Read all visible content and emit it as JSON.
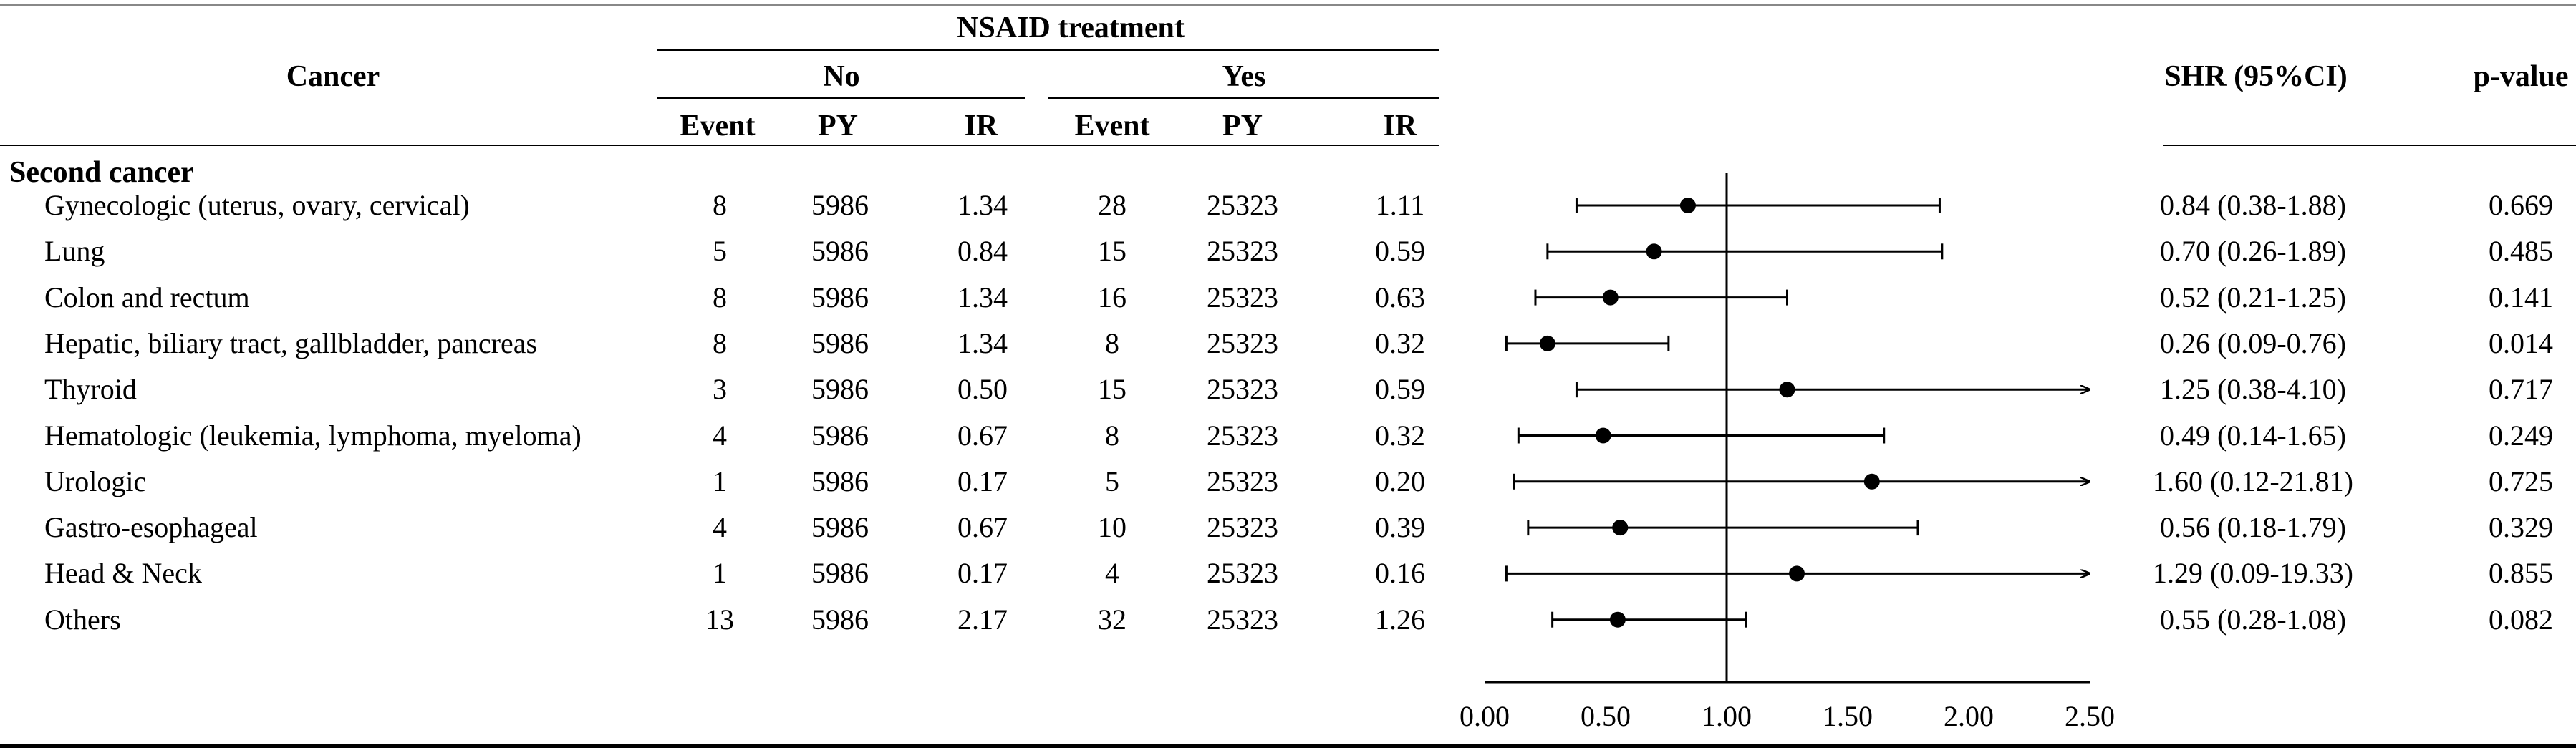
{
  "header": {
    "group_title": "NSAID treatment",
    "col_cancer": "Cancer",
    "group_no": "No",
    "group_yes": "Yes",
    "col_event": "Event",
    "col_py": "PY",
    "col_ir": "IR",
    "col_shr": "SHR (95%CI)",
    "col_p": "p-value"
  },
  "section_label": "Second cancer",
  "rows": [
    {
      "name": "Gynecologic (uterus, ovary, cervical)",
      "no_event": "8",
      "no_py": "5986",
      "no_ir": "1.34",
      "yes_event": "28",
      "yes_py": "25323",
      "yes_ir": "1.11",
      "shr_text": "0.84 (0.38-1.88)",
      "p": "0.669"
    },
    {
      "name": "Lung",
      "no_event": "5",
      "no_py": "5986",
      "no_ir": "0.84",
      "yes_event": "15",
      "yes_py": "25323",
      "yes_ir": "0.59",
      "shr_text": "0.70 (0.26-1.89)",
      "p": "0.485"
    },
    {
      "name": "Colon and rectum",
      "no_event": "8",
      "no_py": "5986",
      "no_ir": "1.34",
      "yes_event": "16",
      "yes_py": "25323",
      "yes_ir": "0.63",
      "shr_text": "0.52 (0.21-1.25)",
      "p": "0.141"
    },
    {
      "name": "Hepatic, biliary tract, gallbladder, pancreas",
      "no_event": "8",
      "no_py": "5986",
      "no_ir": "1.34",
      "yes_event": "8",
      "yes_py": "25323",
      "yes_ir": "0.32",
      "shr_text": "0.26 (0.09-0.76)",
      "p": "0.014"
    },
    {
      "name": "Thyroid",
      "no_event": "3",
      "no_py": "5986",
      "no_ir": "0.50",
      "yes_event": "15",
      "yes_py": "25323",
      "yes_ir": "0.59",
      "shr_text": "1.25 (0.38-4.10)",
      "p": "0.717"
    },
    {
      "name": "Hematologic (leukemia, lymphoma, myeloma)",
      "no_event": "4",
      "no_py": "5986",
      "no_ir": "0.67",
      "yes_event": "8",
      "yes_py": "25323",
      "yes_ir": "0.32",
      "shr_text": "0.49 (0.14-1.65)",
      "p": "0.249"
    },
    {
      "name": "Urologic",
      "no_event": "1",
      "no_py": "5986",
      "no_ir": "0.17",
      "yes_event": "5",
      "yes_py": "25323",
      "yes_ir": "0.20",
      "shr_text": "1.60 (0.12-21.81)",
      "p": "0.725"
    },
    {
      "name": "Gastro-esophageal",
      "no_event": "4",
      "no_py": "5986",
      "no_ir": "0.67",
      "yes_event": "10",
      "yes_py": "25323",
      "yes_ir": "0.39",
      "shr_text": "0.56 (0.18-1.79)",
      "p": "0.329"
    },
    {
      "name": "Head & Neck",
      "no_event": "1",
      "no_py": "5986",
      "no_ir": "0.17",
      "yes_event": "4",
      "yes_py": "25323",
      "yes_ir": "0.16",
      "shr_text": "1.29 (0.09-19.33)",
      "p": "0.855"
    },
    {
      "name": "Others",
      "no_event": "13",
      "no_py": "5986",
      "no_ir": "2.17",
      "yes_event": "32",
      "yes_py": "25323",
      "yes_ir": "1.26",
      "shr_text": "0.55 (0.28-1.08)",
      "p": "0.082"
    }
  ],
  "chart_data": {
    "type": "forest",
    "title": "",
    "xlabel": "",
    "xlim": [
      0,
      2.5
    ],
    "reference_line": 1.0,
    "xticks": [
      0.0,
      0.5,
      1.0,
      1.5,
      2.0,
      2.5
    ],
    "xtick_labels": [
      "0.00",
      "0.50",
      "1.00",
      "1.50",
      "2.00",
      "2.50"
    ],
    "categories": [
      "Gynecologic (uterus, ovary, cervical)",
      "Lung",
      "Colon and rectum",
      "Hepatic, biliary tract, gallbladder, pancreas",
      "Thyroid",
      "Hematologic (leukemia, lymphoma, myeloma)",
      "Urologic",
      "Gastro-esophageal",
      "Head & Neck",
      "Others"
    ],
    "estimate": [
      0.84,
      0.7,
      0.52,
      0.26,
      1.25,
      0.49,
      1.6,
      0.56,
      1.29,
      0.55
    ],
    "lower": [
      0.38,
      0.26,
      0.21,
      0.09,
      0.38,
      0.14,
      0.12,
      0.18,
      0.09,
      0.28
    ],
    "upper": [
      1.88,
      1.89,
      1.25,
      0.76,
      4.1,
      1.65,
      21.81,
      1.79,
      19.33,
      1.08
    ]
  }
}
